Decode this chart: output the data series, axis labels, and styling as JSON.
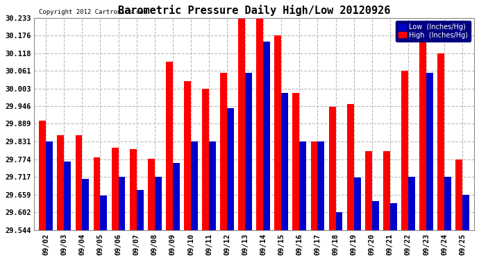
{
  "title": "Barometric Pressure Daily High/Low 20120926",
  "copyright": "Copyright 2012 Cartronics.com",
  "dates": [
    "09/02",
    "09/03",
    "09/04",
    "09/05",
    "09/06",
    "09/07",
    "09/08",
    "09/09",
    "09/10",
    "09/11",
    "09/12",
    "09/13",
    "09/14",
    "09/15",
    "09/16",
    "09/17",
    "09/18",
    "09/19",
    "09/20",
    "09/21",
    "09/22",
    "09/23",
    "09/24",
    "09/25"
  ],
  "high": [
    29.9,
    29.851,
    29.851,
    29.779,
    29.811,
    29.806,
    29.776,
    30.09,
    30.028,
    30.003,
    30.055,
    30.23,
    30.23,
    30.175,
    29.99,
    29.831,
    29.945,
    29.952,
    29.801,
    29.801,
    30.061,
    30.175,
    30.118,
    29.774
  ],
  "low": [
    29.831,
    29.766,
    29.71,
    29.656,
    29.716,
    29.674,
    29.716,
    29.763,
    29.831,
    29.831,
    29.94,
    30.055,
    30.155,
    29.99,
    29.831,
    29.831,
    29.602,
    29.714,
    29.638,
    29.631,
    29.717,
    30.055,
    29.717,
    29.659
  ],
  "ylim_min": 29.544,
  "ylim_max": 30.233,
  "yticks": [
    29.544,
    29.602,
    29.659,
    29.717,
    29.774,
    29.831,
    29.889,
    29.946,
    30.003,
    30.061,
    30.118,
    30.176,
    30.233
  ],
  "bar_width": 0.38,
  "high_color": "#FF0000",
  "low_color": "#0000CC",
  "bg_color": "#FFFFFF",
  "grid_color": "#BBBBBB",
  "title_fontsize": 11,
  "legend_bg": "#000080"
}
